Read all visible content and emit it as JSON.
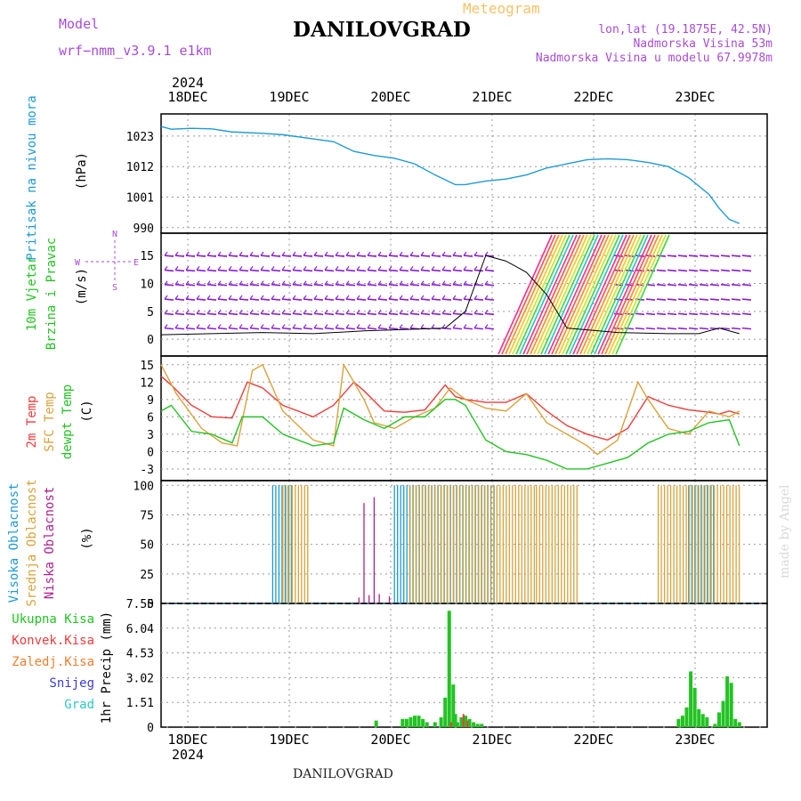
{
  "header": {
    "model_label": "Model",
    "model_name": "wrf−nmm_v3.9.1  e1km",
    "product": "Meteogram",
    "station": "DANILOVGRAD",
    "location": "lon,lat (19.1875E, 42.5N)",
    "elevation": "Nadmorska Visina 53m",
    "model_elevation": "Nadmorska Visina u modelu 67.9978m",
    "footer_station": "DANILOVGRAD",
    "credit": "made by Angel"
  },
  "colors": {
    "pressure": "#1e9ad6",
    "temp2m": "#ee3b3b",
    "sfc": "#d9a23a",
    "dewpt": "#22c322",
    "high": "#1e9ad6",
    "mid": "#d9a23a",
    "low": "#b0208e",
    "precip_total": "#22c322",
    "precip_conv": "#ee3b3b",
    "precip_frozen": "#ee7f2d",
    "precip_snow": "#3b3bd6",
    "precip_graupel": "#2ec7c7",
    "wind_purple": "#8a1ed6",
    "label_purple": "#a64dd6"
  },
  "chart_data": [
    {
      "type": "line",
      "id": "pressure",
      "ylabel_side": "Pritisak na nivou mora",
      "unit": "(hPa)",
      "yticks": [
        990,
        1001,
        1012,
        1023
      ],
      "ylim": [
        988,
        1031
      ],
      "x_year": "2024",
      "date_labels": [
        "18DEC",
        "19DEC",
        "20DEC",
        "21DEC",
        "22DEC",
        "23DEC"
      ],
      "series": [
        {
          "key": "pressure",
          "x": [
            0,
            0.1,
            0.3,
            0.5,
            0.7,
            1.0,
            1.2,
            1.5,
            1.7,
            1.9,
            2.1,
            2.3,
            2.5,
            2.7,
            2.9,
            3.0,
            3.2,
            3.4,
            3.6,
            3.8,
            4.0,
            4.2,
            4.4,
            4.6,
            4.8,
            5.0,
            5.2,
            5.4,
            5.5,
            5.6,
            5.7
          ],
          "y": [
            1026.5,
            1025.5,
            1025.8,
            1025.6,
            1024.5,
            1024,
            1023.5,
            1022,
            1021,
            1017.5,
            1016,
            1015,
            1013,
            1009,
            1005.5,
            1005.5,
            1006.8,
            1007.5,
            1009,
            1011.5,
            1013,
            1014.5,
            1014.8,
            1014.5,
            1013.5,
            1012,
            1008,
            1002,
            997,
            993,
            991.5
          ]
        }
      ]
    },
    {
      "type": "wind",
      "id": "wind",
      "ylabel_side": [
        "10m Vjetar",
        "Brzina i Pravac"
      ],
      "unit": "(m/s)",
      "yticks": [
        0,
        5,
        10,
        15
      ],
      "ylim": [
        -3,
        19
      ],
      "compass": {
        "n": "N",
        "w": "W",
        "e": "E",
        "s": "S"
      },
      "speed_line": {
        "x": [
          0,
          0.5,
          1.0,
          1.5,
          2.0,
          2.5,
          2.8,
          3.0,
          3.2,
          3.4,
          3.6,
          3.8,
          4.0,
          4.5,
          5.0,
          5.3,
          5.5,
          5.7
        ],
        "y": [
          0.8,
          1.0,
          1.2,
          1.0,
          1.5,
          1.8,
          2.0,
          5.0,
          15.0,
          14.0,
          12.0,
          8.0,
          2.0,
          1.2,
          1.0,
          1.0,
          2.0,
          1.0
        ]
      }
    },
    {
      "type": "line",
      "id": "temperature",
      "ylabel_side": [
        "2m Temp",
        "SFC Temp",
        "dewpt Temp"
      ],
      "unit": "(C)",
      "yticks": [
        -3,
        0,
        3,
        6,
        9,
        12,
        15
      ],
      "ylim": [
        -5,
        16.5
      ],
      "series": [
        {
          "key": "temp2m",
          "x": [
            0,
            0.1,
            0.3,
            0.5,
            0.7,
            0.85,
            1.0,
            1.2,
            1.5,
            1.7,
            1.9,
            2.0,
            2.2,
            2.4,
            2.6,
            2.8,
            2.9,
            3.0,
            3.2,
            3.4,
            3.6,
            3.8,
            4.0,
            4.2,
            4.4,
            4.6,
            4.8,
            5.0,
            5.2,
            5.4,
            5.5,
            5.6,
            5.7
          ],
          "y": [
            13,
            11.5,
            8,
            6,
            5.8,
            12,
            11,
            8,
            6,
            8,
            12,
            10.5,
            7,
            6.8,
            7.2,
            11.5,
            9.5,
            9,
            8.5,
            8.5,
            10,
            7,
            4.5,
            3,
            2,
            4,
            9.5,
            8,
            7.2,
            6.8,
            6.5,
            7,
            6.5
          ]
        },
        {
          "key": "sfc",
          "x": [
            0,
            0.15,
            0.4,
            0.6,
            0.75,
            0.9,
            1.0,
            1.2,
            1.5,
            1.7,
            1.8,
            2.0,
            2.1,
            2.3,
            2.5,
            2.7,
            2.85,
            3.0,
            3.2,
            3.4,
            3.6,
            3.8,
            4.0,
            4.2,
            4.3,
            4.5,
            4.7,
            4.8,
            5.0,
            5.2,
            5.4,
            5.6,
            5.7
          ],
          "y": [
            15,
            10,
            4,
            1.5,
            1,
            14,
            15,
            7,
            2,
            1,
            15,
            9,
            5,
            4,
            6,
            7.5,
            11,
            9,
            7.5,
            7,
            10,
            5,
            3,
            1,
            -0.5,
            2,
            12,
            9,
            4,
            3,
            7,
            6,
            7
          ]
        },
        {
          "key": "dewpt",
          "x": [
            0,
            0.1,
            0.3,
            0.5,
            0.7,
            0.8,
            1.0,
            1.2,
            1.5,
            1.7,
            1.8,
            2.0,
            2.2,
            2.4,
            2.6,
            2.8,
            2.9,
            3.0,
            3.2,
            3.4,
            3.6,
            3.8,
            4.0,
            4.2,
            4.4,
            4.6,
            4.8,
            5.0,
            5.2,
            5.4,
            5.6,
            5.7
          ],
          "y": [
            7,
            8,
            3.5,
            3,
            1.5,
            6,
            6,
            3,
            1,
            1.5,
            7.5,
            5.5,
            4,
            6,
            6,
            9,
            9,
            8,
            2,
            0,
            -0.5,
            -1.5,
            -3,
            -3,
            -2,
            -1,
            1.5,
            3,
            3.5,
            5,
            5.5,
            1
          ]
        }
      ]
    },
    {
      "type": "bar",
      "id": "clouds",
      "ylabel_side": [
        "Visoka Oblacnost",
        "Srednja Oblacnost",
        "Niska Oblacnost"
      ],
      "unit": "(%)",
      "yticks": [
        0,
        25,
        50,
        75,
        100
      ],
      "ylim": [
        0,
        100
      ],
      "blocks": [
        {
          "key": "high",
          "from": 1.1,
          "to": 1.3
        },
        {
          "key": "mid",
          "from": 1.2,
          "to": 1.45
        },
        {
          "key": "high",
          "from": 2.3,
          "to": 3.3
        },
        {
          "key": "mid",
          "from": 2.45,
          "to": 3.7
        },
        {
          "key": "mid",
          "from": 3.7,
          "to": 4.1
        },
        {
          "key": "high",
          "from": 5.2,
          "to": 5.45
        },
        {
          "key": "mid",
          "from": 4.9,
          "to": 5.7
        }
      ],
      "low_spikes": {
        "x": [
          1.95,
          2.05,
          2.15,
          2.25,
          2.0,
          2.1
        ],
        "y": [
          5,
          7,
          8,
          6,
          85,
          90
        ]
      }
    },
    {
      "type": "bar",
      "id": "precip",
      "ylabel_side": "1hr Precip (mm)",
      "legend": [
        "Ukupna Kisa",
        "Konvek.Kisa",
        "Zaledj.Kisa",
        "Snijeg",
        "Grad"
      ],
      "yticks": [
        0,
        1.51,
        3.02,
        4.53,
        6.04,
        7.55
      ],
      "ylim": [
        0,
        7.55
      ],
      "total": {
        "x": [
          2.12,
          2.38,
          2.42,
          2.46,
          2.5,
          2.54,
          2.58,
          2.62,
          2.7,
          2.76,
          2.8,
          2.84,
          2.88,
          2.9,
          2.92,
          2.96,
          3.0,
          3.04,
          3.08,
          3.12,
          3.16,
          5.1,
          5.14,
          5.18,
          5.22,
          5.26,
          5.3,
          5.34,
          5.38,
          5.46,
          5.5,
          5.54,
          5.58,
          5.62,
          5.66,
          5.7
        ],
        "y": [
          0.4,
          0.5,
          0.5,
          0.6,
          0.7,
          0.7,
          0.5,
          0.3,
          0.3,
          0.6,
          1.8,
          7.1,
          2.6,
          0.8,
          0.3,
          0.6,
          0.7,
          0.5,
          0.3,
          0.2,
          0.2,
          0.5,
          0.7,
          1.2,
          3.4,
          2.4,
          1.1,
          0.8,
          0.6,
          0.2,
          0.9,
          1.6,
          3.1,
          2.7,
          0.5,
          0.3
        ]
      },
      "convective": {
        "x": [
          2.86,
          2.98,
          3.02
        ],
        "y": [
          0.3,
          0.8,
          0.4
        ]
      }
    }
  ]
}
